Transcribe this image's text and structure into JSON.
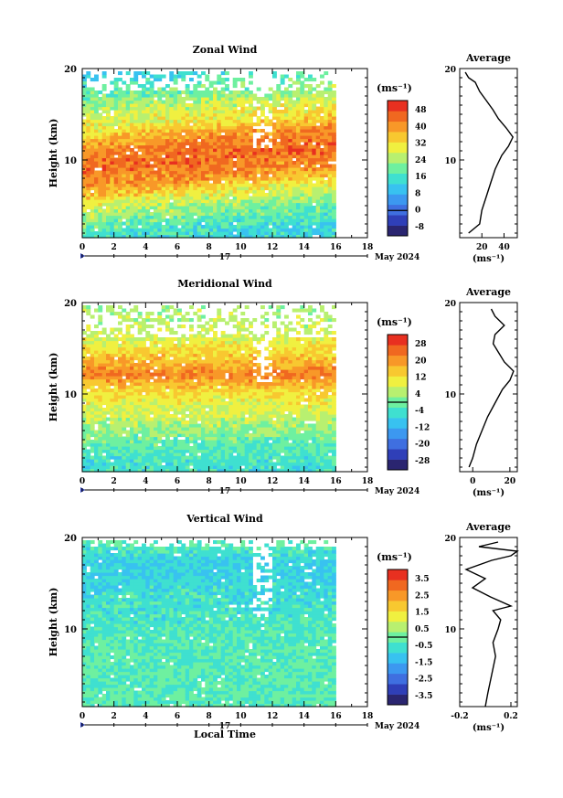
{
  "date_label": "May 2024",
  "day_label": "17",
  "x_axis_label": "Local Time",
  "avg_unit_label": "(ms⁻¹)",
  "chart_data": [
    {
      "type": "heatmap",
      "title": "Zonal Wind",
      "ylabel": "Height (km)",
      "xlabel": "",
      "xlim": [
        0,
        18
      ],
      "ylim": [
        1.5,
        20
      ],
      "xticks": [
        0,
        2,
        4,
        6,
        8,
        10,
        12,
        14,
        16,
        18
      ],
      "yticks": [
        10,
        20
      ],
      "data_xrange": [
        0,
        16
      ],
      "colorbar": {
        "unit": "(ms⁻¹)",
        "ticks": [
          "48",
          "40",
          "32",
          "24",
          "16",
          "8",
          "0",
          "-8"
        ],
        "min": -12,
        "max": 52,
        "contour_value": 0,
        "colors": [
          "#2a2570",
          "#2f3fb8",
          "#3f6fe0",
          "#3c98f0",
          "#38c2f0",
          "#3fe0d0",
          "#6ef0a0",
          "#b8f070",
          "#f0f040",
          "#f8c830",
          "#f89828",
          "#f06820",
          "#e83020"
        ]
      },
      "profile": {
        "title": "Average",
        "xlim": [
          0,
          52
        ],
        "xticks": [
          20,
          40
        ],
        "x_unit": "(ms⁻¹)",
        "heights": [
          2.0,
          3.0,
          4.5,
          6.0,
          7.5,
          9.0,
          10.5,
          11.5,
          12.5,
          13.5,
          14.5,
          15.5,
          16.5,
          17.5,
          18.5,
          19.0,
          19.6
        ],
        "values": [
          8,
          18,
          20,
          24,
          28,
          32,
          38,
          44,
          48,
          42,
          35,
          30,
          24,
          18,
          14,
          8,
          5
        ]
      },
      "field": {
        "base": [
          [
            2,
            14
          ],
          [
            4,
            20
          ],
          [
            6,
            28
          ],
          [
            8,
            40
          ],
          [
            10,
            44
          ],
          [
            12,
            42
          ],
          [
            14,
            32
          ],
          [
            16,
            26
          ],
          [
            18,
            20
          ],
          [
            20,
            12
          ]
        ],
        "dx": [
          -0.35,
          0.15
        ],
        "band_center": 11.2,
        "band_slope": 0.15,
        "noise": 5,
        "gap_above": 17.5
      }
    },
    {
      "type": "heatmap",
      "title": "Meridional Wind",
      "ylabel": "Height (km)",
      "xlabel": "",
      "xlim": [
        0,
        18
      ],
      "ylim": [
        1.5,
        20
      ],
      "xticks": [
        0,
        2,
        4,
        6,
        8,
        10,
        12,
        14,
        16,
        18
      ],
      "yticks": [
        10,
        20
      ],
      "data_xrange": [
        0,
        16
      ],
      "colorbar": {
        "unit": "(ms⁻¹)",
        "ticks": [
          "28",
          "20",
          "12",
          "4",
          "-4",
          "-12",
          "-20",
          "-28"
        ],
        "min": -32,
        "max": 32,
        "contour_value": 0,
        "colors": [
          "#2a2570",
          "#2f3fb8",
          "#3f6fe0",
          "#3c98f0",
          "#38c2f0",
          "#3fe0d0",
          "#6ef0a0",
          "#b8f070",
          "#f0f040",
          "#f8c830",
          "#f89828",
          "#f06820",
          "#e83020"
        ]
      },
      "profile": {
        "title": "Average",
        "xlim": [
          -7,
          24
        ],
        "xticks": [
          0,
          20
        ],
        "x_unit": "(ms⁻¹)",
        "heights": [
          2.0,
          3.0,
          4.5,
          6.0,
          7.5,
          9.0,
          10.5,
          11.5,
          12.5,
          13.5,
          14.5,
          15.5,
          16.5,
          17.5,
          18.5,
          19.3
        ],
        "values": [
          -2,
          0,
          2,
          5,
          8,
          12,
          16,
          20,
          22,
          17,
          14,
          11,
          12,
          17,
          12,
          10
        ]
      },
      "field": {
        "base": [
          [
            2,
            -5
          ],
          [
            4,
            -2
          ],
          [
            6,
            3
          ],
          [
            8,
            8
          ],
          [
            10,
            12
          ],
          [
            12,
            22
          ],
          [
            14,
            14
          ],
          [
            16,
            8
          ],
          [
            18,
            5
          ],
          [
            20,
            3
          ]
        ],
        "dx": [
          -0.2,
          0.1
        ],
        "band_center": 12,
        "band_slope": 0,
        "noise": 4,
        "gap_above": 16
      }
    },
    {
      "type": "heatmap",
      "title": "Vertical Wind",
      "ylabel": "Height (km)",
      "xlabel": "Local Time",
      "xlim": [
        0,
        18
      ],
      "ylim": [
        1.5,
        20
      ],
      "xticks": [
        0,
        2,
        4,
        6,
        8,
        10,
        12,
        14,
        16,
        18
      ],
      "yticks": [
        10,
        20
      ],
      "data_xrange": [
        0,
        16
      ],
      "colorbar": {
        "unit": "(ms⁻¹)",
        "ticks": [
          "3.5",
          "2.5",
          "1.5",
          "0.5",
          "-0.5",
          "-1.5",
          "-2.5",
          "-3.5"
        ],
        "min": -4,
        "max": 4,
        "contour_value": 0,
        "colors": [
          "#2a2570",
          "#2f3fb8",
          "#3f6fe0",
          "#3c98f0",
          "#38c2f0",
          "#3fe0d0",
          "#6ef0a0",
          "#b8f070",
          "#f0f040",
          "#f8c830",
          "#f89828",
          "#f06820",
          "#e83020"
        ]
      },
      "profile": {
        "title": "Average",
        "xlim": [
          -0.2,
          0.25
        ],
        "xticks": [
          -0.2,
          0.2
        ],
        "x_unit": "(ms⁻¹)",
        "heights": [
          1.5,
          3.0,
          5.0,
          7.0,
          8.5,
          10.0,
          11.0,
          12.0,
          12.5,
          13.5,
          14.5,
          15.5,
          16.5,
          17.5,
          18.0,
          18.5,
          19.0,
          19.5
        ],
        "values": [
          0.0,
          0.02,
          0.05,
          0.08,
          0.06,
          0.1,
          0.12,
          0.06,
          0.2,
          0.04,
          -0.1,
          0.0,
          -0.15,
          0.05,
          0.2,
          0.25,
          -0.05,
          0.1
        ]
      },
      "field": {
        "base": [
          [
            2,
            -0.2
          ],
          [
            6,
            -0.2
          ],
          [
            10,
            -0.4
          ],
          [
            14,
            -0.7
          ],
          [
            17,
            -1.0
          ],
          [
            20,
            0
          ]
        ],
        "dx": [
          0,
          0
        ],
        "band_center": 10,
        "band_slope": 0,
        "noise": 0.5,
        "gap_above": 18.8
      }
    }
  ]
}
